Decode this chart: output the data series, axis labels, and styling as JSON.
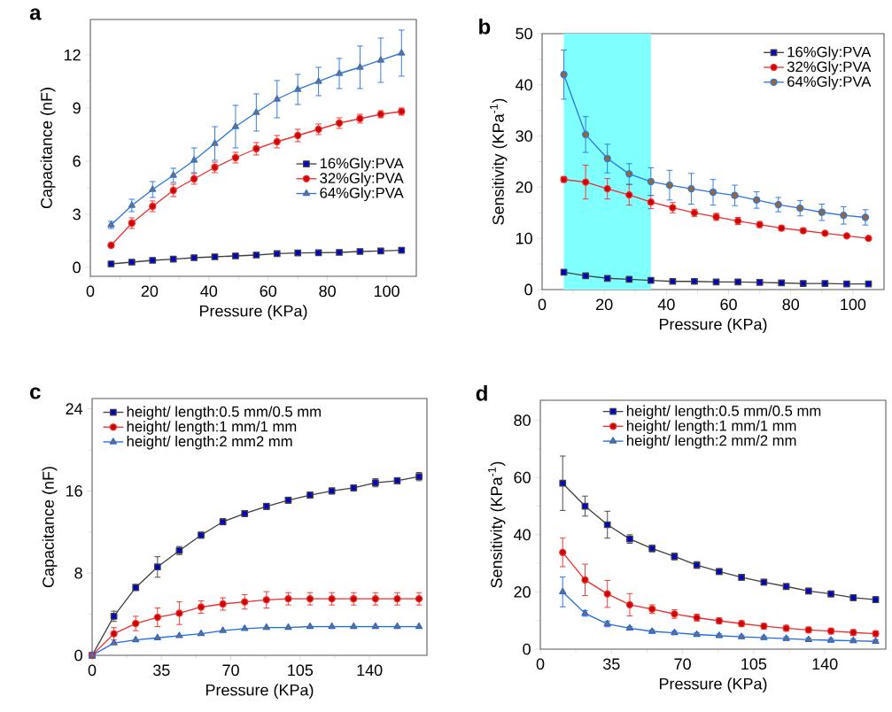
{
  "chart_data": [
    {
      "type": "line",
      "title": "a",
      "xlabel": "Pressure (KPa)",
      "ylabel": "Capacitance (nF)",
      "xlim": [
        0,
        110
      ],
      "ylim": [
        -0.5,
        14
      ],
      "xticks": [
        0,
        20,
        40,
        60,
        80,
        100
      ],
      "yticks": [
        0,
        3,
        6,
        9,
        12
      ],
      "legend": "right",
      "grid": false,
      "x": [
        7,
        14,
        21,
        28,
        35,
        42,
        49,
        56,
        63,
        70,
        77,
        84,
        91,
        98,
        105
      ],
      "series": [
        {
          "name": "16%Gly:PVA",
          "color": "#404040",
          "marker": "square",
          "values": [
            0.2,
            0.3,
            0.4,
            0.47,
            0.55,
            0.6,
            0.65,
            0.7,
            0.78,
            0.82,
            0.83,
            0.85,
            0.9,
            0.93,
            0.97
          ]
        },
        {
          "name": "32%Gly:PVA",
          "color": "#ee2f2f",
          "marker": "circle",
          "values": [
            1.25,
            2.5,
            3.45,
            4.35,
            5.0,
            5.65,
            6.2,
            6.7,
            7.1,
            7.45,
            7.8,
            8.15,
            8.4,
            8.65,
            8.8
          ],
          "errors": [
            0.1,
            0.3,
            0.3,
            0.35,
            0.3,
            0.3,
            0.3,
            0.35,
            0.35,
            0.35,
            0.3,
            0.3,
            0.25,
            0.2,
            0.2
          ]
        },
        {
          "name": "64%Gly:PVA",
          "color": "#2a75e0",
          "marker": "triangle",
          "values": [
            2.4,
            3.5,
            4.4,
            5.2,
            6.05,
            7.0,
            7.95,
            8.75,
            9.5,
            10.05,
            10.5,
            10.95,
            11.3,
            11.7,
            12.1
          ],
          "errors": [
            0.2,
            0.35,
            0.45,
            0.4,
            0.7,
            0.95,
            1.2,
            1.05,
            1.05,
            0.85,
            0.8,
            0.85,
            1.2,
            1.25,
            1.3
          ]
        }
      ]
    },
    {
      "type": "line",
      "title": "b",
      "xlabel": "Pressure (KPa)",
      "ylabel": "Sensitivity (KPa$^{-1}$)",
      "xlim": [
        0,
        110
      ],
      "ylim": [
        0,
        50
      ],
      "xticks": [
        0,
        20,
        40,
        60,
        80,
        100
      ],
      "yticks": [
        0,
        10,
        20,
        30,
        40,
        50
      ],
      "legend": "top right",
      "grid": false,
      "bands": [
        {
          "axis": "x",
          "from": 7,
          "to": 35,
          "color": "#80ffff"
        }
      ],
      "x": [
        7,
        14,
        21,
        28,
        35,
        42,
        49,
        56,
        63,
        70,
        77,
        84,
        91,
        98,
        105
      ],
      "series": [
        {
          "name": "16%Gly:PVA",
          "color": "#404040",
          "marker": "square",
          "values": [
            3.4,
            2.7,
            2.2,
            2.0,
            1.8,
            1.6,
            1.6,
            1.5,
            1.5,
            1.4,
            1.3,
            1.2,
            1.2,
            1.1,
            1.1
          ]
        },
        {
          "name": "32%Gly:PVA",
          "color": "#ee2f2f",
          "marker": "circle",
          "values": [
            21.5,
            21.0,
            19.7,
            18.5,
            17.1,
            16.0,
            15.0,
            14.2,
            13.4,
            12.7,
            12.0,
            11.5,
            11.0,
            10.5,
            10.0
          ],
          "errors": [
            0.5,
            3.3,
            2.0,
            2.0,
            1.3,
            1.0,
            0.7,
            0.7,
            0.7,
            0.6,
            0.5,
            0.4,
            0.3,
            0.3,
            0.3
          ]
        },
        {
          "name": "64%Gly:PVA",
          "color": "#2a75e0",
          "marker": "circle",
          "x": [
            7,
            14,
            21,
            28,
            35,
            41,
            48,
            55,
            62,
            69,
            76,
            83,
            90,
            97,
            104
          ],
          "values": [
            42.0,
            30.3,
            25.6,
            22.6,
            21.1,
            20.4,
            19.7,
            19.0,
            18.4,
            17.5,
            16.6,
            15.9,
            15.1,
            14.5,
            14.1
          ],
          "errors": [
            4.8,
            3.5,
            2.8,
            2.0,
            2.7,
            2.9,
            3.0,
            2.5,
            2.0,
            1.6,
            1.4,
            1.5,
            1.6,
            1.7,
            1.5
          ]
        }
      ]
    },
    {
      "type": "line",
      "title": "c",
      "xlabel": "Pressure (KPa)",
      "ylabel": "Capacitance (nF)",
      "xlim": [
        0,
        169
      ],
      "ylim": [
        0,
        25
      ],
      "xticks": [
        0,
        35,
        70,
        105,
        140
      ],
      "yticks": [
        0,
        8,
        16,
        24
      ],
      "legend": "top left",
      "grid": false,
      "x": [
        0,
        11,
        22,
        33,
        44,
        55,
        66,
        77,
        88,
        99,
        110,
        121,
        132,
        143,
        154,
        165
      ],
      "series": [
        {
          "name": "height/ length:0.5 mm/0.5 mm",
          "color": "#404040",
          "marker": "square",
          "values": [
            0,
            3.8,
            6.6,
            8.6,
            10.2,
            11.7,
            13.0,
            13.8,
            14.5,
            15.1,
            15.6,
            16.0,
            16.3,
            16.8,
            17.0,
            17.4
          ],
          "errors": [
            0,
            0.5,
            0.3,
            1.0,
            0.4,
            0.3,
            0.3,
            0.3,
            0.3,
            0.3,
            0.3,
            0.3,
            0.3,
            0.4,
            0.3,
            0.4
          ]
        },
        {
          "name": "height/ length:1 mm/1 mm",
          "color": "#ee2f2f",
          "marker": "circle",
          "values": [
            0,
            2.1,
            3.1,
            3.7,
            4.1,
            4.7,
            5.0,
            5.2,
            5.4,
            5.5,
            5.5,
            5.5,
            5.5,
            5.5,
            5.5,
            5.5
          ],
          "errors": [
            0,
            0.6,
            0.7,
            0.9,
            1.1,
            0.6,
            0.6,
            0.7,
            0.8,
            0.6,
            0.6,
            0.6,
            0.6,
            0.6,
            0.6,
            0.6
          ]
        },
        {
          "name": "height/ length:2 mm2 mm",
          "color": "#1f6be6",
          "marker": "triangle",
          "values": [
            0,
            1.2,
            1.5,
            1.7,
            1.9,
            2.1,
            2.4,
            2.6,
            2.7,
            2.7,
            2.8,
            2.8,
            2.8,
            2.8,
            2.8,
            2.8
          ]
        }
      ]
    },
    {
      "type": "line",
      "title": "d",
      "xlabel": "Pressure (KPa)",
      "ylabel": "Sensitivity (KPa$^{-1}$)",
      "xlim": [
        0,
        170
      ],
      "ylim": [
        0,
        87
      ],
      "xticks": [
        0,
        35,
        70,
        105,
        140
      ],
      "yticks": [
        0,
        20,
        40,
        60,
        80
      ],
      "legend": "top",
      "grid": false,
      "x": [
        11,
        22,
        33,
        44,
        55,
        66,
        77,
        88,
        99,
        110,
        121,
        132,
        143,
        154,
        165
      ],
      "series": [
        {
          "name": "height/ length:0.5 mm/0.5 mm",
          "color": "#404040",
          "marker": "square",
          "values": [
            58.0,
            50.0,
            43.5,
            38.5,
            35.2,
            32.4,
            29.4,
            27.1,
            25.1,
            23.4,
            21.9,
            20.3,
            19.3,
            18.0,
            17.3
          ],
          "errors": [
            9.5,
            3.5,
            4.7,
            1.5,
            1.2,
            1.2,
            1.2,
            1.0,
            1.0,
            1.0,
            1.0,
            1.0,
            1.0,
            1.0,
            1.0
          ]
        },
        {
          "name": "height/ length:1 mm/1 mm",
          "color": "#ee2f2f",
          "marker": "circle",
          "values": [
            33.8,
            24.2,
            19.3,
            15.5,
            14.0,
            12.3,
            11.0,
            9.9,
            8.9,
            8.0,
            7.3,
            6.7,
            6.3,
            5.8,
            5.4
          ],
          "errors": [
            5.0,
            5.5,
            4.7,
            3.9,
            1.5,
            1.5,
            1.2,
            1.0,
            1.0,
            1.0,
            1.0,
            1.0,
            1.0,
            1.0,
            1.0
          ]
        },
        {
          "name": "height/ length:2 mm/2 mm",
          "color": "#1f6be6",
          "marker": "triangle",
          "values": [
            20.0,
            12.5,
            8.8,
            7.3,
            6.2,
            5.7,
            5.1,
            4.7,
            4.3,
            4.0,
            3.7,
            3.3,
            3.1,
            2.9,
            2.7
          ],
          "errors": [
            5.2,
            1.0,
            1.0,
            0.6,
            0.6,
            0.6,
            0.6,
            0.6,
            0.6,
            0.6,
            0.6,
            0.6,
            0.6,
            0.6,
            0.6
          ]
        }
      ]
    }
  ]
}
